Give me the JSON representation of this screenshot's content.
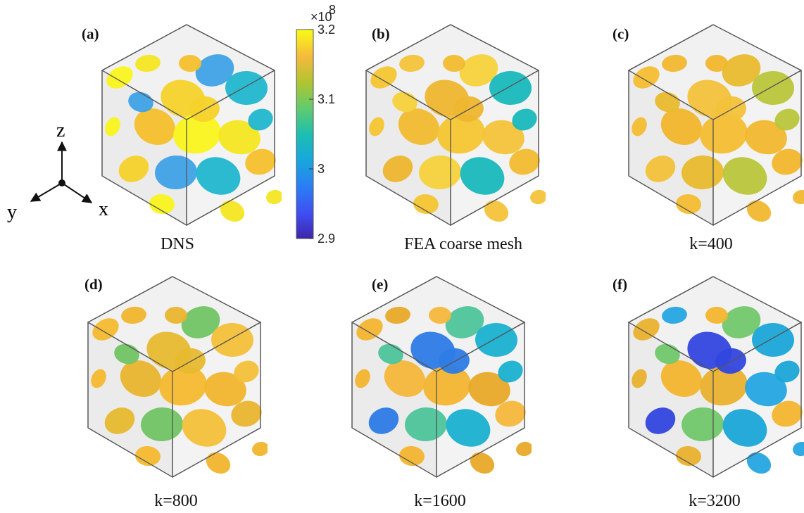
{
  "figure": {
    "panels": [
      {
        "label": "(a)",
        "caption": "DNS",
        "profile": 0
      },
      {
        "label": "(b)",
        "caption": "FEA coarse mesh",
        "profile": 1
      },
      {
        "label": "(c)",
        "caption": "k=400",
        "profile": 2
      },
      {
        "label": "(d)",
        "caption": "k=800",
        "profile": 3
      },
      {
        "label": "(e)",
        "caption": "k=1600",
        "profile": 4
      },
      {
        "label": "(f)",
        "caption": "k=3200",
        "profile": 5
      }
    ],
    "colorbar": {
      "exponent_base": "×10",
      "exponent_power": "8",
      "ticks": [
        "3.2",
        "3.1",
        "3",
        "2.9"
      ],
      "min": 2.9,
      "max": 3.2,
      "colormap": "parula"
    },
    "axes_triad": {
      "x": "x",
      "y": "y",
      "z": "z"
    }
  }
}
